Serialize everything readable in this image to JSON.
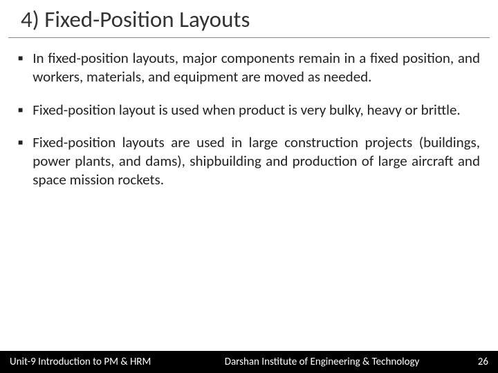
{
  "slide": {
    "title": "4)  Fixed-Position Layouts",
    "bullets": [
      "In fixed-position layouts, major components remain in a fixed position, and workers, materials, and equipment are moved as needed.",
      "Fixed-position layout is used when product is very bulky, heavy or brittle.",
      "Fixed-position layouts are used in large construction projects (buildings, power plants, and dams), shipbuilding and production of large aircraft and space mission rockets."
    ]
  },
  "footer": {
    "left": "Unit-9 Introduction to PM & HRM",
    "center": "Darshan Institute of Engineering & Technology",
    "page_number": "26"
  },
  "styling": {
    "background_color": "#ffffff",
    "title_color": "#333333",
    "title_fontsize": 33,
    "body_color": "#222222",
    "body_fontsize": 21,
    "footer_bg": "#000000",
    "footer_color": "#ffffff",
    "footer_fontsize": 15,
    "bullet_marker": "■",
    "title_underline_color": "#888888"
  }
}
